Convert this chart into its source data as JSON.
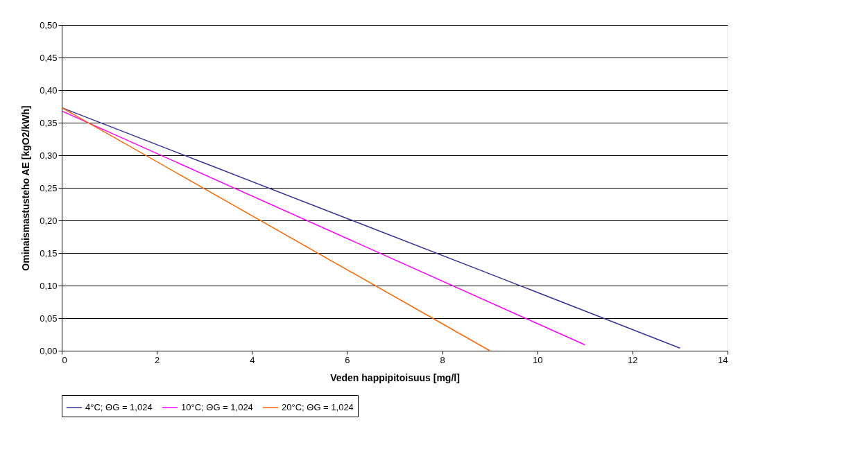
{
  "chart_data": {
    "type": "line",
    "xlabel": "Veden happipitoisuus [mg/l]",
    "ylabel": "Ominaismastusteho AE  [kgO2/kWh]",
    "xlim": [
      0,
      14
    ],
    "xticks": [
      0,
      2,
      4,
      6,
      8,
      10,
      12,
      14
    ],
    "ylim": [
      0,
      0.5
    ],
    "yticks": [
      {
        "value": 0,
        "label": "0,00"
      },
      {
        "value": 0.05,
        "label": "0,05"
      },
      {
        "value": 0.1,
        "label": "0,10"
      },
      {
        "value": 0.15,
        "label": "0,15"
      },
      {
        "value": 0.2,
        "label": "0,20"
      },
      {
        "value": 0.25,
        "label": "0,25"
      },
      {
        "value": 0.3,
        "label": "0,30"
      },
      {
        "value": 0.35,
        "label": "0,35"
      },
      {
        "value": 0.4,
        "label": "0,40"
      },
      {
        "value": 0.45,
        "label": "0,45"
      },
      {
        "value": 0.5,
        "label": "0,50"
      }
    ],
    "grid": "y",
    "legend": "bottom",
    "marker": "none",
    "line_style": "solid",
    "series": [
      {
        "name": "4°C; ΘG = 1,024",
        "color": "#333399",
        "x": [
          0,
          3,
          6,
          9,
          13
        ],
        "values": [
          0.373,
          0.288,
          0.203,
          0.118,
          0.004
        ]
      },
      {
        "name": "10°C; ΘG = 1,024",
        "color": "#ff00ff",
        "x": [
          0,
          11
        ],
        "values": [
          0.368,
          0.009
        ]
      },
      {
        "name": "20°C; ΘG = 1,024",
        "color": "#ff6600",
        "x": [
          0,
          9
        ],
        "values": [
          0.373,
          0.0
        ]
      }
    ]
  }
}
